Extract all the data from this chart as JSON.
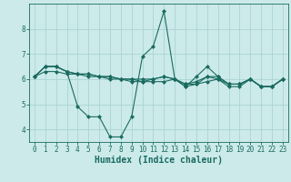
{
  "xlabel": "Humidex (Indice chaleur)",
  "bg_color": "#cceaea",
  "line_color": "#1a6b60",
  "grid_color": "#aad4d4",
  "xlim": [
    -0.5,
    23.5
  ],
  "ylim": [
    3.5,
    9.0
  ],
  "yticks": [
    4,
    5,
    6,
    7,
    8
  ],
  "xticks": [
    0,
    1,
    2,
    3,
    4,
    5,
    6,
    7,
    8,
    9,
    10,
    11,
    12,
    13,
    14,
    15,
    16,
    17,
    18,
    19,
    20,
    21,
    22,
    23
  ],
  "series": [
    [
      6.1,
      6.5,
      6.5,
      6.3,
      4.9,
      4.5,
      4.5,
      3.7,
      3.7,
      4.5,
      6.9,
      7.3,
      8.7,
      6.0,
      5.7,
      6.1,
      6.5,
      6.1,
      5.8,
      5.8,
      6.0,
      5.7,
      5.7,
      6.0
    ],
    [
      6.1,
      6.5,
      6.5,
      6.3,
      6.2,
      6.2,
      6.1,
      6.1,
      6.0,
      5.9,
      5.9,
      5.9,
      5.9,
      6.0,
      5.7,
      5.8,
      6.1,
      6.0,
      5.8,
      5.8,
      6.0,
      5.7,
      5.7,
      6.0
    ],
    [
      6.1,
      6.3,
      6.3,
      6.2,
      6.2,
      6.1,
      6.1,
      6.0,
      6.0,
      6.0,
      5.9,
      6.0,
      6.1,
      6.0,
      5.8,
      5.8,
      5.9,
      6.0,
      5.7,
      5.7,
      6.0,
      5.7,
      5.7,
      6.0
    ],
    [
      6.1,
      6.5,
      6.5,
      6.3,
      6.2,
      6.2,
      6.1,
      6.1,
      6.0,
      6.0,
      6.0,
      6.0,
      6.1,
      6.0,
      5.8,
      5.9,
      6.1,
      6.1,
      5.8,
      5.8,
      6.0,
      5.7,
      5.7,
      6.0
    ]
  ],
  "marker": "D",
  "marker_size": 2.0,
  "linewidth": 0.8,
  "tick_fontsize": 5.5,
  "xlabel_fontsize": 7.0
}
